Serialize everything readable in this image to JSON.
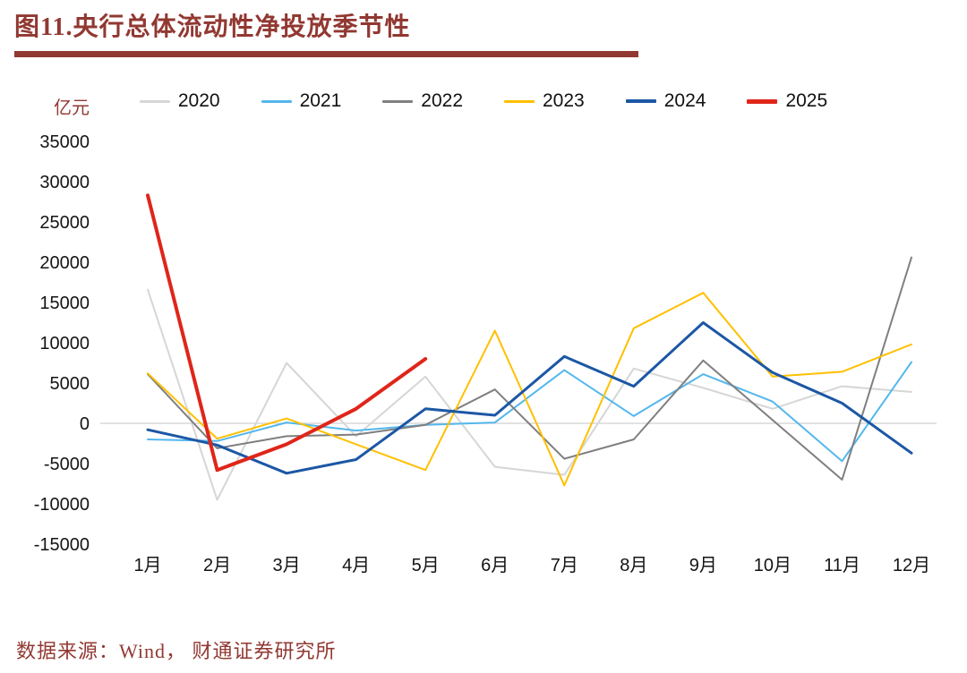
{
  "title": "图11.央行总体流动性净投放季节性",
  "unit_label": "亿元",
  "source": "数据来源：Wind， 财通证券研究所",
  "colors": {
    "accent": "#913832",
    "axis_line": "#D9D9D9",
    "text": "#141414",
    "background": "#FFFFFF"
  },
  "chart_data": {
    "type": "line",
    "title": "图11.央行总体流动性净投放季节性",
    "ylabel": "亿元",
    "categories": [
      "1月",
      "2月",
      "3月",
      "4月",
      "5月",
      "6月",
      "7月",
      "8月",
      "9月",
      "10月",
      "11月",
      "12月"
    ],
    "series": [
      {
        "name": "2020",
        "color": "#D6D6D6",
        "width": 2,
        "values": [
          16600,
          -9500,
          7500,
          -1600,
          5800,
          -5400,
          -6400,
          6800,
          4400,
          1800,
          4600,
          3900
        ]
      },
      {
        "name": "2021",
        "color": "#54B7ED",
        "width": 2,
        "values": [
          -2000,
          -2200,
          100,
          -900,
          -200,
          100,
          6600,
          900,
          6100,
          2700,
          -4700,
          7600
        ]
      },
      {
        "name": "2022",
        "color": "#7F7F7F",
        "width": 2,
        "values": [
          6100,
          -3100,
          -1600,
          -1400,
          -200,
          4200,
          -4400,
          -2000,
          7800,
          400,
          -7000,
          20600
        ]
      },
      {
        "name": "2023",
        "color": "#FFC000",
        "width": 2,
        "values": [
          6200,
          -1900,
          600,
          -2600,
          -5800,
          11500,
          -7700,
          11800,
          16200,
          5800,
          6400,
          9800
        ]
      },
      {
        "name": "2024",
        "color": "#1C57A5",
        "width": 3,
        "values": [
          -800,
          -2700,
          -6200,
          -4500,
          1800,
          1000,
          8300,
          4600,
          12500,
          6300,
          2500,
          -3700
        ]
      },
      {
        "name": "2025",
        "color": "#E02519",
        "width": 4,
        "values": [
          28300,
          -5800,
          -2600,
          1800,
          8000,
          null,
          null,
          null,
          null,
          null,
          null,
          null
        ]
      }
    ],
    "ylim": [
      -15000,
      35000
    ],
    "ytick_step": 5000,
    "grid": false,
    "legend_position": "top",
    "axis_note": "only zero baseline drawn"
  }
}
